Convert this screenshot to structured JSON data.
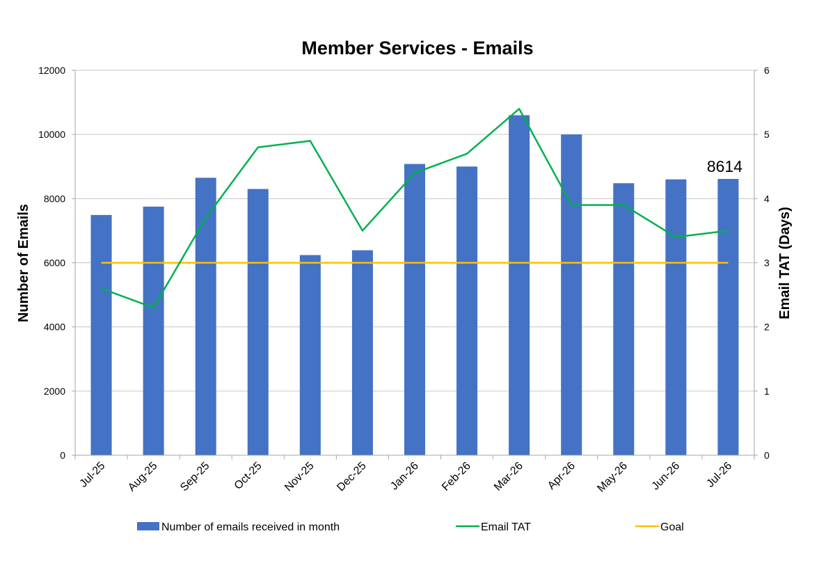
{
  "chart_data": {
    "type": "bar",
    "title": "Member Services - Emails",
    "categories": [
      "Jul-25",
      "Aug-25",
      "Sep-25",
      "Oct-25",
      "Nov-25",
      "Dec-25",
      "Jan-26",
      "Feb-26",
      "Mar-26",
      "Apr-26",
      "May-26",
      "Jun-26",
      "Jul-26"
    ],
    "series": [
      {
        "name": "Number of emails received in month",
        "type": "bar",
        "axis": "left",
        "color": "#4472C4",
        "values": [
          7490,
          7750,
          8650,
          8300,
          6240,
          6390,
          9080,
          9000,
          10600,
          10000,
          8480,
          8600,
          8614
        ]
      },
      {
        "name": "Email TAT",
        "type": "line",
        "axis": "right",
        "color": "#00B050",
        "values": [
          2.6,
          2.3,
          3.7,
          4.8,
          4.9,
          3.5,
          4.4,
          4.7,
          5.4,
          3.9,
          3.9,
          3.4,
          3.5
        ]
      },
      {
        "name": "Goal",
        "type": "line",
        "axis": "right",
        "color": "#FFC000",
        "values": [
          3,
          3,
          3,
          3,
          3,
          3,
          3,
          3,
          3,
          3,
          3,
          3,
          3
        ]
      }
    ],
    "ylabel": "Number of Emails",
    "y2label": "Email TAT (Days)",
    "ylim": [
      0,
      12000
    ],
    "y2lim": [
      0,
      6
    ],
    "yticks": [
      "0",
      "2000",
      "4000",
      "6000",
      "8000",
      "10000",
      "12000"
    ],
    "y2ticks": [
      "0",
      "1",
      "2",
      "3",
      "4",
      "5",
      "6"
    ],
    "annotations": [
      {
        "category": "Jul-26",
        "text": "8614"
      }
    ],
    "grid": true,
    "legend_position": "bottom"
  }
}
